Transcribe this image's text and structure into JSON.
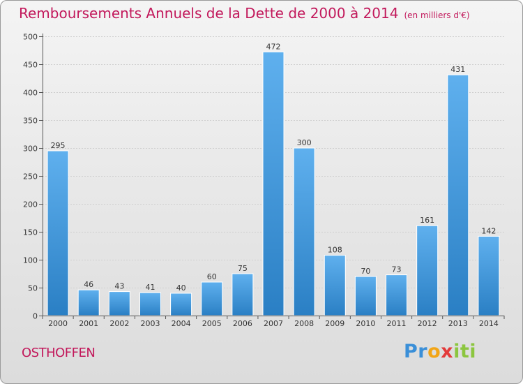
{
  "title": "Remboursements Annuels de la Dette de 2000 à 2014",
  "subtitle": "(en milliers d'€)",
  "commune": "OSTHOFFEN",
  "logo": {
    "part1": "Pr",
    "part2": "o",
    "part3": "x",
    "part4": "iti"
  },
  "colors": {
    "title": "#c2185b",
    "bar_top": "#5fb0ee",
    "bar_bottom": "#2a7fc4",
    "grid": "#cfcfcf"
  },
  "chart_data": {
    "type": "bar",
    "title": "Remboursements Annuels de la Dette de 2000 à 2014",
    "xlabel": "",
    "ylabel": "",
    "categories": [
      "2000",
      "2001",
      "2002",
      "2003",
      "2004",
      "2005",
      "2006",
      "2007",
      "2008",
      "2009",
      "2010",
      "2011",
      "2012",
      "2013",
      "2014"
    ],
    "values": [
      295,
      46,
      43,
      41,
      40,
      60,
      75,
      472,
      300,
      108,
      70,
      73,
      161,
      431,
      142
    ],
    "data_labels": [
      "295",
      "46",
      "43",
      "41",
      "40",
      "60",
      "75",
      "472",
      "300",
      "108",
      "70",
      "73",
      "161",
      "431",
      "142"
    ],
    "ylim": [
      0,
      500
    ],
    "yticks": [
      0,
      50,
      100,
      150,
      200,
      250,
      300,
      350,
      400,
      450,
      500
    ],
    "ytick_labels": [
      "0",
      "50",
      "100",
      "150",
      "200",
      "250",
      "300",
      "350",
      "400",
      "450",
      "500"
    ],
    "grid": true,
    "legend": "none"
  }
}
